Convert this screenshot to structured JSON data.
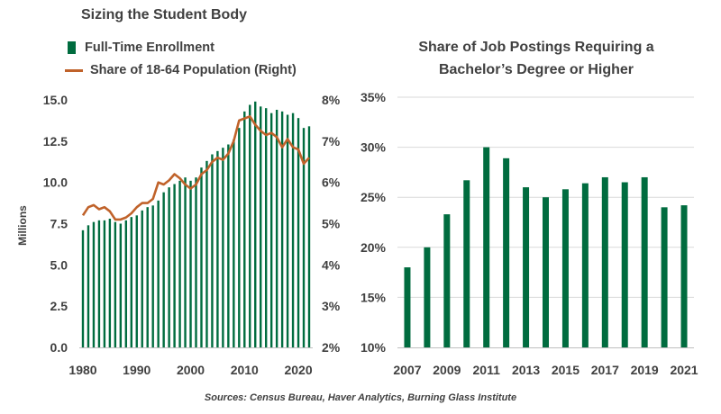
{
  "colors": {
    "bar": "#006c3f",
    "line": "#c0622a",
    "grid": "#d9d9d9",
    "text": "#404040"
  },
  "source": "Sources: Census Bureau, Haver Analytics, Burning Glass Institute",
  "chart_data": [
    {
      "type": "bar",
      "title": "Sizing the Student Body",
      "ylabel": "Millions",
      "y2label": "",
      "ylim": [
        0,
        15
      ],
      "y2lim": [
        2,
        8
      ],
      "yticks": [
        "0.0",
        "2.5",
        "5.0",
        "7.5",
        "10.0",
        "12.5",
        "15.0"
      ],
      "y2ticks": [
        "2%",
        "3%",
        "4%",
        "5%",
        "6%",
        "7%",
        "8%"
      ],
      "xticks": [
        "1980",
        "1990",
        "2000",
        "2010",
        "2020"
      ],
      "grid": false,
      "x": [
        1980,
        1981,
        1982,
        1983,
        1984,
        1985,
        1986,
        1987,
        1988,
        1989,
        1990,
        1991,
        1992,
        1993,
        1994,
        1995,
        1996,
        1997,
        1998,
        1999,
        2000,
        2001,
        2002,
        2003,
        2004,
        2005,
        2006,
        2007,
        2008,
        2009,
        2010,
        2011,
        2012,
        2013,
        2014,
        2015,
        2016,
        2017,
        2018,
        2019,
        2020,
        2021,
        2022
      ],
      "series": [
        {
          "name": "Full-Time Enrollment",
          "kind": "bar",
          "axis": "left",
          "values": [
            7.1,
            7.4,
            7.6,
            7.7,
            7.7,
            7.8,
            7.6,
            7.5,
            7.7,
            7.9,
            8.0,
            8.3,
            8.5,
            8.6,
            8.9,
            9.4,
            9.7,
            9.9,
            10.1,
            10.3,
            10.1,
            10.3,
            10.9,
            11.3,
            11.7,
            11.9,
            12.1,
            12.3,
            12.6,
            13.3,
            14.3,
            14.7,
            14.9,
            14.6,
            14.5,
            14.2,
            14.4,
            14.3,
            14.1,
            14.2,
            13.9,
            13.3,
            13.4
          ]
        },
        {
          "name": "Share of 18-64 Population (Right)",
          "kind": "line",
          "axis": "right",
          "values": [
            5.2,
            5.4,
            5.45,
            5.35,
            5.4,
            5.3,
            5.1,
            5.1,
            5.15,
            5.25,
            5.4,
            5.5,
            5.5,
            5.6,
            6.0,
            5.95,
            6.05,
            6.2,
            6.1,
            5.95,
            5.85,
            5.95,
            6.2,
            6.3,
            6.5,
            6.6,
            6.55,
            6.7,
            7.0,
            7.5,
            7.55,
            7.6,
            7.4,
            7.25,
            7.15,
            7.2,
            7.1,
            6.85,
            7.05,
            6.85,
            6.8,
            6.45,
            6.6
          ]
        }
      ]
    },
    {
      "type": "bar",
      "title": "Share of Job Postings Requiring a Bachelor’s Degree or Higher",
      "xlabel": "",
      "ylabel": "",
      "ylim": [
        10,
        35
      ],
      "yticks": [
        "10%",
        "15%",
        "20%",
        "25%",
        "30%",
        "35%"
      ],
      "xticks": [
        "2007",
        "2009",
        "2011",
        "2013",
        "2015",
        "2017",
        "2019",
        "2021"
      ],
      "grid": true,
      "categories": [
        "2007",
        "2008",
        "2009",
        "2010",
        "2011",
        "2012",
        "2013",
        "2014",
        "2015",
        "2016",
        "2017",
        "2018",
        "2019",
        "2020",
        "2021"
      ],
      "values": [
        18.0,
        20.0,
        23.3,
        26.7,
        30.0,
        28.9,
        26.0,
        25.0,
        25.8,
        26.4,
        27.0,
        26.5,
        27.0,
        24.0,
        24.2
      ]
    }
  ]
}
